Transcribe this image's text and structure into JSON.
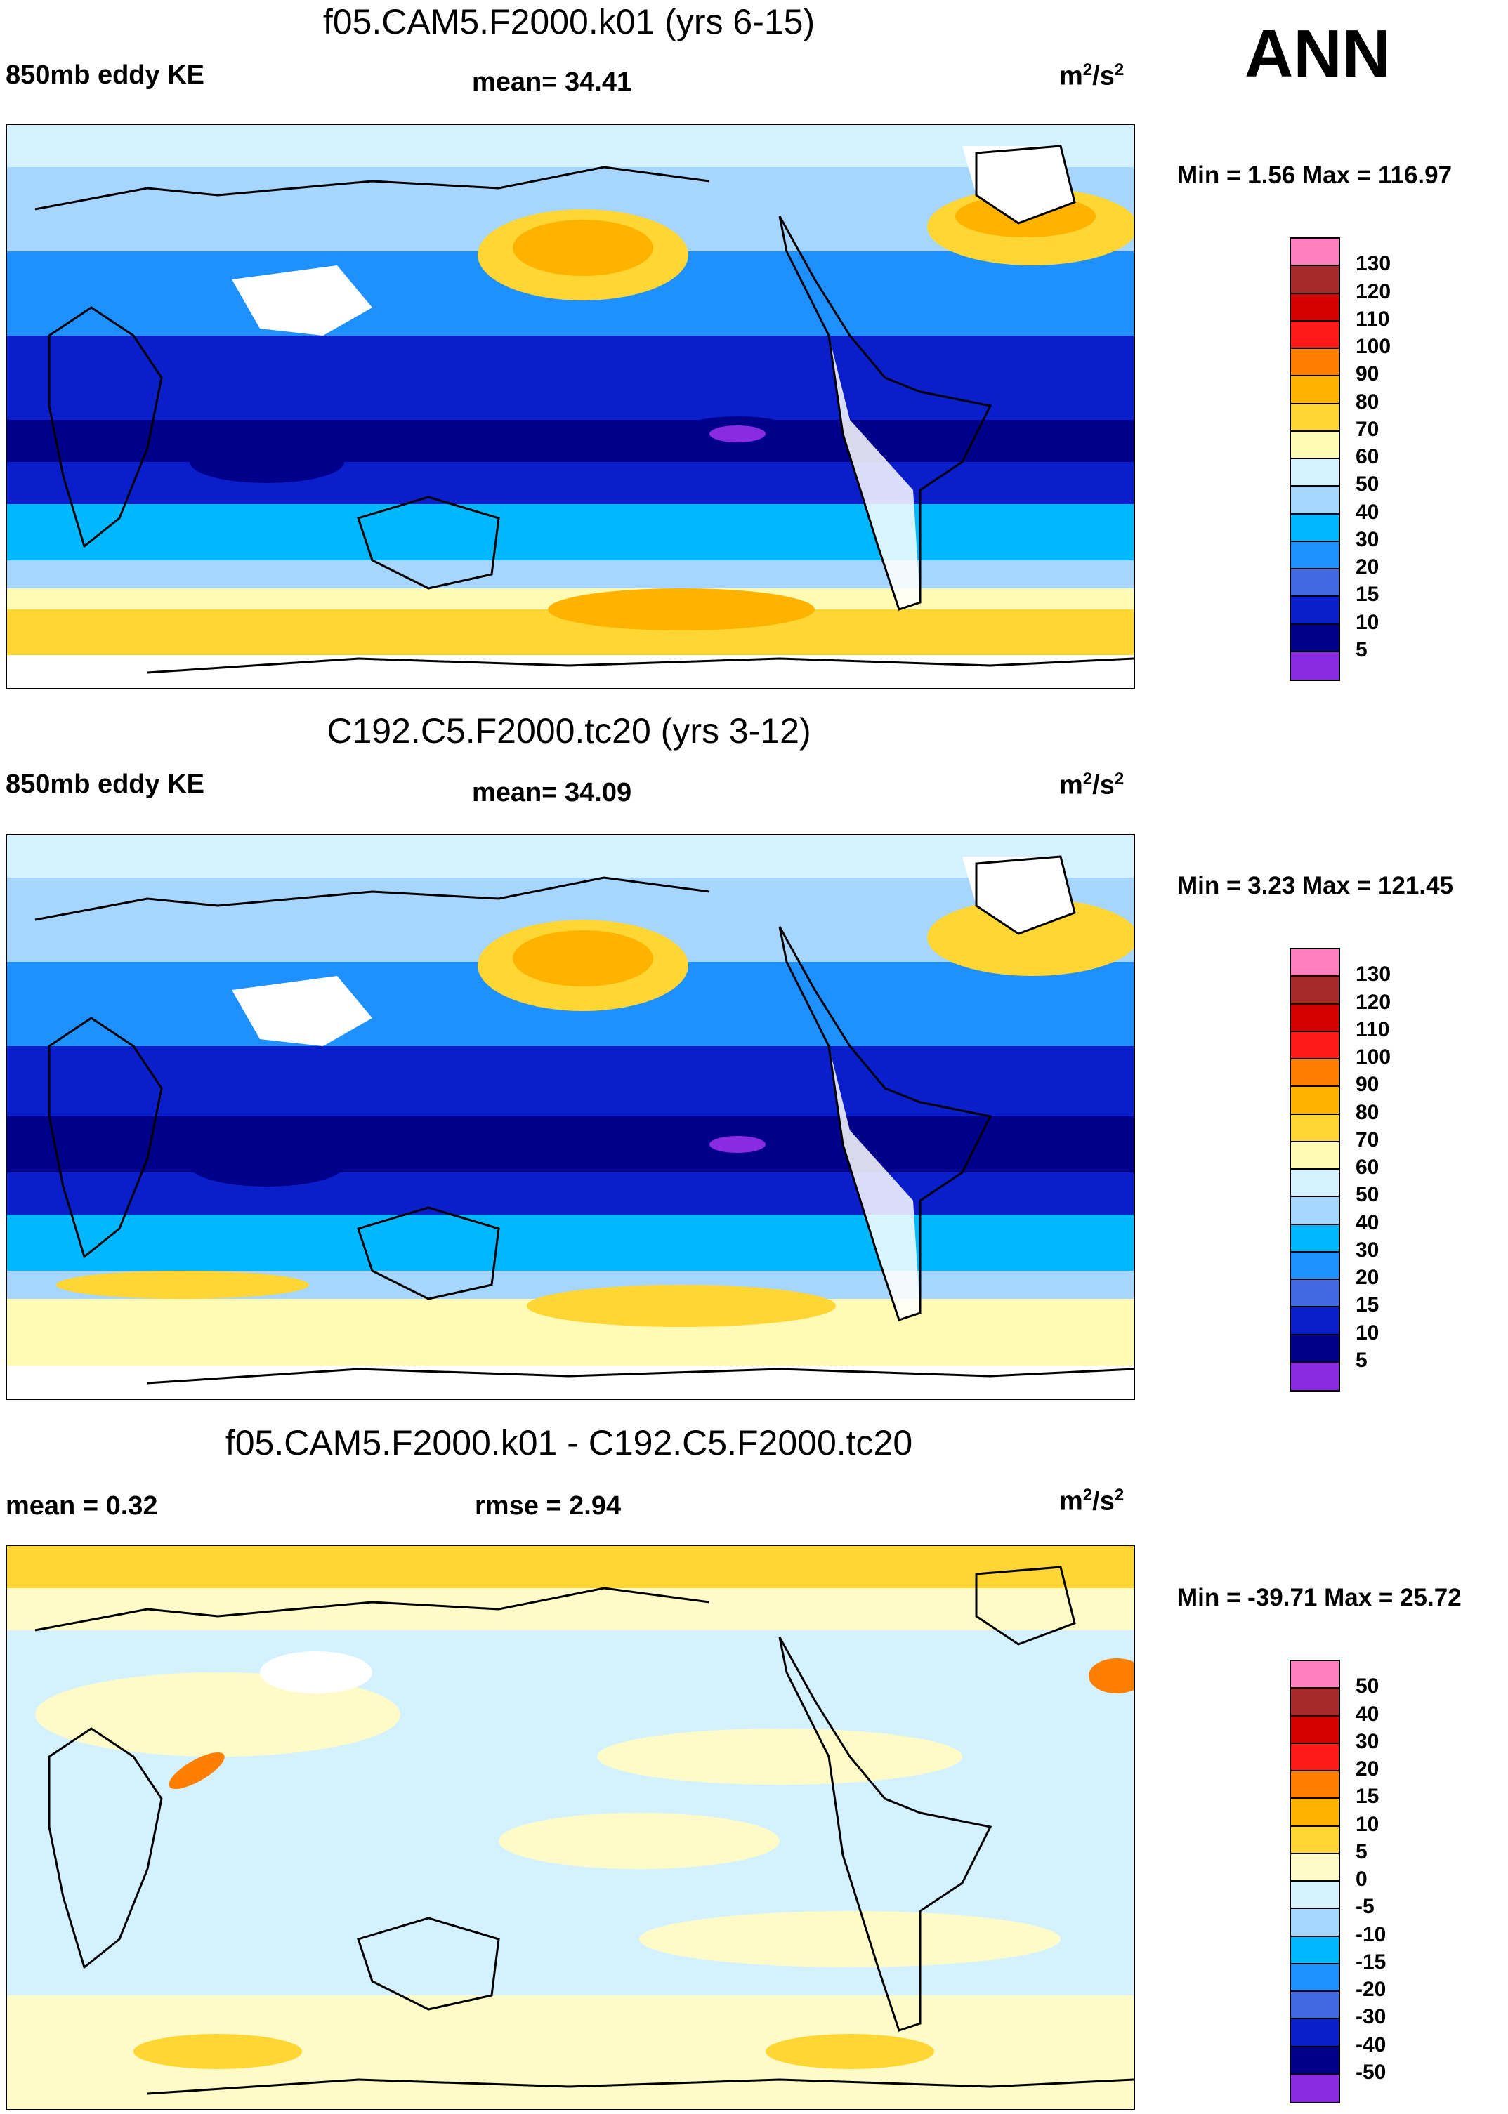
{
  "season": "ANN",
  "panels": [
    {
      "title": "f05.CAM5.F2000.k01 (yrs 6-15)",
      "left_label": "850mb eddy KE",
      "center_label": "mean=  34.41",
      "units_base": "m",
      "units_sup": "2",
      "units_tail": "/s",
      "units_sup2": "2",
      "minmax": "Min =   1.56 Max = 116.97",
      "colorbar": {
        "levels": [
          "130",
          "120",
          "110",
          "100",
          "90",
          "80",
          "70",
          "60",
          "50",
          "40",
          "30",
          "20",
          "15",
          "10",
          "5"
        ],
        "colors": [
          "#ff7fbf",
          "#a52a2a",
          "#d50000",
          "#ff1a1a",
          "#ff7f00",
          "#ffb300",
          "#ffd633",
          "#fffbb5",
          "#d4f1ff",
          "#a6d5ff",
          "#00b8ff",
          "#1e90ff",
          "#4169e1",
          "#0a1ecc",
          "#00008b",
          "#8a2be2"
        ]
      }
    },
    {
      "title": "C192.C5.F2000.tc20 (yrs 3-12)",
      "left_label": "850mb eddy KE",
      "center_label": "mean=  34.09",
      "units_base": "m",
      "units_sup": "2",
      "units_tail": "/s",
      "units_sup2": "2",
      "minmax": "Min =   3.23 Max = 121.45",
      "colorbar": {
        "levels": [
          "130",
          "120",
          "110",
          "100",
          "90",
          "80",
          "70",
          "60",
          "50",
          "40",
          "30",
          "20",
          "15",
          "10",
          "5"
        ],
        "colors": [
          "#ff7fbf",
          "#a52a2a",
          "#d50000",
          "#ff1a1a",
          "#ff7f00",
          "#ffb300",
          "#ffd633",
          "#fffbb5",
          "#d4f1ff",
          "#a6d5ff",
          "#00b8ff",
          "#1e90ff",
          "#4169e1",
          "#0a1ecc",
          "#00008b",
          "#8a2be2"
        ]
      }
    },
    {
      "title": "f05.CAM5.F2000.k01 - C192.C5.F2000.tc20",
      "left_label": "mean =   0.32",
      "center_label": "rmse =   2.94",
      "units_base": "m",
      "units_sup": "2",
      "units_tail": "/s",
      "units_sup2": "2",
      "minmax": "Min = -39.71 Max =  25.72",
      "colorbar": {
        "levels": [
          "50",
          "40",
          "30",
          "20",
          "15",
          "10",
          "5",
          "0",
          "-5",
          "-10",
          "-15",
          "-20",
          "-30",
          "-40",
          "-50"
        ],
        "colors": [
          "#ff7fbf",
          "#a52a2a",
          "#d50000",
          "#ff1a1a",
          "#ff7f00",
          "#ffb300",
          "#ffd633",
          "#fffbc8",
          "#d4f1ff",
          "#a6d5ff",
          "#00b8ff",
          "#1e90ff",
          "#4169e1",
          "#0a1ecc",
          "#00008b",
          "#8a2be2"
        ]
      }
    }
  ]
}
